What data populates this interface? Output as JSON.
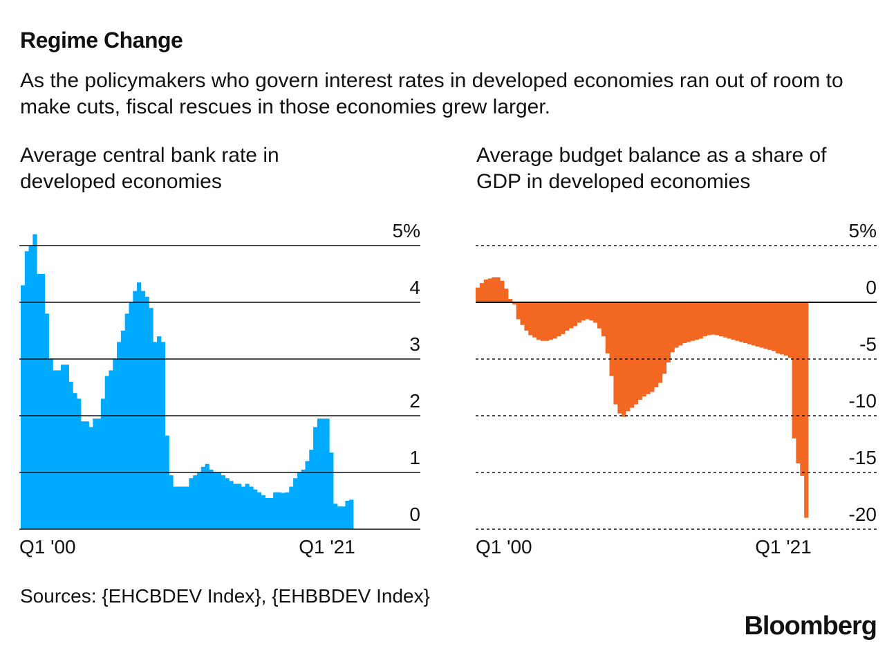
{
  "header": {
    "title": "Regime Change",
    "subtitle": "As the policymakers who govern interest rates in developed economies ran out of room to make cuts, fiscal rescues in those economies grew larger."
  },
  "footer": {
    "source": "Sources: {EHCBDEV Index}, {EHBBDEV Index}",
    "logo": "Bloomberg"
  },
  "chart_data": [
    {
      "type": "bar",
      "title": "Average central bank rate in developed economies",
      "color": "#00aaff",
      "ylim": [
        0,
        5
      ],
      "y_ticks": [
        "0",
        "1",
        "2",
        "3",
        "4",
        "5%"
      ],
      "x_tick_labels": [
        "Q1 '00",
        "Q1 '21"
      ],
      "grid": "solid",
      "x_start": "2000-Q1",
      "values": [
        4.3,
        4.9,
        5.0,
        5.2,
        4.5,
        4.5,
        3.8,
        3.0,
        2.8,
        2.8,
        2.9,
        2.9,
        2.6,
        2.4,
        2.3,
        1.9,
        1.9,
        1.8,
        1.95,
        1.95,
        2.3,
        2.7,
        2.8,
        3.0,
        3.3,
        3.5,
        3.8,
        4.0,
        4.2,
        4.35,
        4.2,
        4.1,
        3.9,
        3.3,
        3.4,
        3.3,
        1.65,
        0.95,
        0.75,
        0.75,
        0.75,
        0.75,
        0.9,
        0.95,
        1.0,
        1.1,
        1.15,
        1.05,
        1.0,
        1.0,
        0.95,
        0.9,
        0.85,
        0.8,
        0.8,
        0.75,
        0.8,
        0.75,
        0.7,
        0.65,
        0.6,
        0.55,
        0.55,
        0.65,
        0.65,
        0.64,
        0.65,
        0.75,
        0.9,
        1.0,
        1.05,
        1.2,
        1.4,
        1.8,
        1.95,
        1.95,
        1.95,
        1.35,
        0.45,
        0.4,
        0.4,
        0.5,
        0.52
      ]
    },
    {
      "type": "bar",
      "title": "Average budget balance as a share of GDP in developed economies",
      "color": "#f26722",
      "ylim": [
        -20,
        5
      ],
      "y_ticks": [
        "-20",
        "-15",
        "-10",
        "-5",
        "0",
        "5%"
      ],
      "x_tick_labels": [
        "Q1 '00",
        "Q1 '21"
      ],
      "grid": "dashed",
      "x_start": "2000-Q1",
      "values": [
        1.3,
        1.7,
        2.0,
        2.1,
        2.2,
        2.2,
        1.9,
        1.2,
        0.3,
        -0.2,
        -1.5,
        -2.0,
        -2.5,
        -2.9,
        -3.1,
        -3.3,
        -3.4,
        -3.4,
        -3.3,
        -3.2,
        -3.0,
        -2.8,
        -2.5,
        -2.3,
        -2.1,
        -1.8,
        -1.6,
        -1.5,
        -1.6,
        -1.8,
        -2.3,
        -3.0,
        -4.5,
        -6.5,
        -9.0,
        -9.8,
        -10.1,
        -9.6,
        -9.3,
        -9.0,
        -8.6,
        -8.3,
        -8.1,
        -7.9,
        -7.5,
        -7.1,
        -6.3,
        -5.3,
        -4.4,
        -4.0,
        -3.8,
        -3.6,
        -3.5,
        -3.4,
        -3.3,
        -3.2,
        -3.0,
        -2.9,
        -2.85,
        -2.9,
        -3.0,
        -3.1,
        -3.2,
        -3.3,
        -3.4,
        -3.5,
        -3.6,
        -3.7,
        -3.8,
        -3.9,
        -4.0,
        -4.1,
        -4.2,
        -4.3,
        -4.5,
        -4.6,
        -4.7,
        -4.9,
        -12.0,
        -14.2,
        -15.3,
        -19.0
      ]
    }
  ]
}
